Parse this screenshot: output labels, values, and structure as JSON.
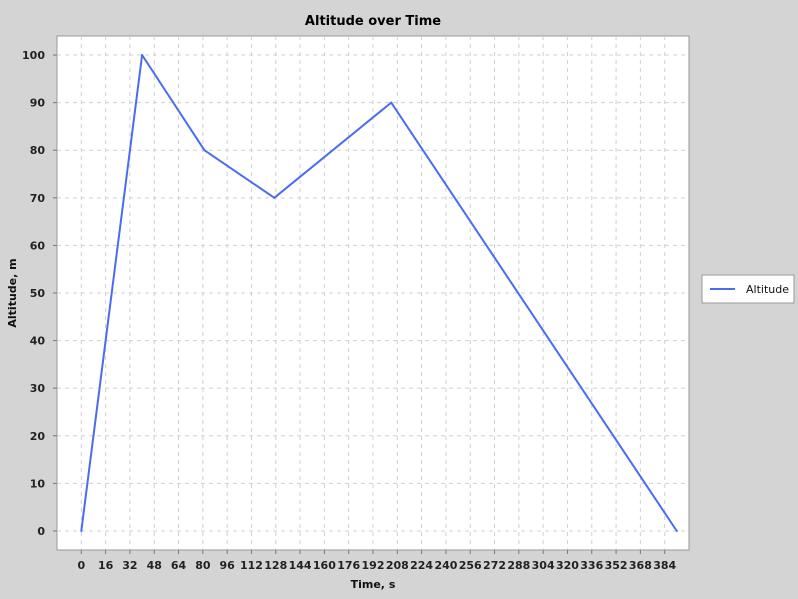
{
  "chart_data": {
    "type": "line",
    "title": "Altitude over Time",
    "xlabel": "Time, s",
    "ylabel": "Altitude, m",
    "xlim": [
      -16,
      400
    ],
    "ylim": [
      -4,
      104
    ],
    "xticks": [
      "0",
      "16",
      "32",
      "48",
      "64",
      "80",
      "96",
      "112",
      "128",
      "144",
      "160",
      "176",
      "192",
      "208",
      "224",
      "240",
      "256",
      "272",
      "288",
      "304",
      "320",
      "336",
      "352",
      "368",
      "384"
    ],
    "yticks": [
      "0",
      "10",
      "20",
      "30",
      "40",
      "50",
      "60",
      "70",
      "80",
      "90",
      "100"
    ],
    "grid": true,
    "legend_position": "right",
    "series": [
      {
        "name": "Altitude",
        "color": "#4a6cf0",
        "x": [
          0,
          40,
          81,
          127,
          204,
          392
        ],
        "y": [
          0,
          100,
          80,
          70,
          90,
          0
        ]
      }
    ]
  },
  "colors": {
    "background": "#d4d4d4",
    "plot_background": "#ffffff",
    "gridline": "#d0d0d0",
    "series": "#4a6cf0"
  }
}
